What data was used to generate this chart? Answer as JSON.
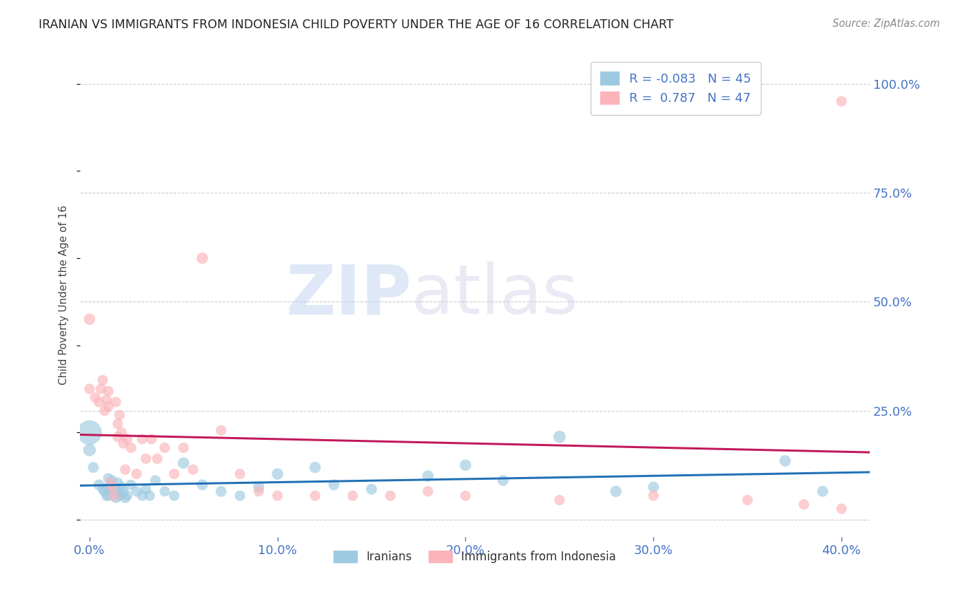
{
  "title": "IRANIAN VS IMMIGRANTS FROM INDONESIA CHILD POVERTY UNDER THE AGE OF 16 CORRELATION CHART",
  "source": "Source: ZipAtlas.com",
  "xlabel_ticks": [
    "0.0%",
    "10.0%",
    "20.0%",
    "30.0%",
    "40.0%"
  ],
  "xlabel_tick_vals": [
    0.0,
    0.1,
    0.2,
    0.3,
    0.4
  ],
  "ylabel": "Child Poverty Under the Age of 16",
  "ylabel_right_ticks": [
    "100.0%",
    "75.0%",
    "50.0%",
    "25.0%"
  ],
  "ylabel_right_tick_vals": [
    1.0,
    0.75,
    0.5,
    0.25
  ],
  "xlim": [
    -0.005,
    0.415
  ],
  "ylim": [
    -0.04,
    1.07
  ],
  "ytick_vals": [
    0.0,
    0.25,
    0.5,
    0.75,
    1.0
  ],
  "legend_iranian_R": "-0.083",
  "legend_iranian_N": "45",
  "legend_indonesia_R": "0.787",
  "legend_indonesia_N": "47",
  "watermark_zip": "ZIP",
  "watermark_atlas": "atlas",
  "scatter_iranian_x": [
    0.0,
    0.0,
    0.002,
    0.005,
    0.007,
    0.008,
    0.009,
    0.01,
    0.01,
    0.01,
    0.012,
    0.013,
    0.014,
    0.015,
    0.015,
    0.016,
    0.017,
    0.018,
    0.019,
    0.02,
    0.022,
    0.025,
    0.028,
    0.03,
    0.032,
    0.035,
    0.04,
    0.045,
    0.05,
    0.06,
    0.07,
    0.08,
    0.09,
    0.1,
    0.12,
    0.13,
    0.15,
    0.18,
    0.2,
    0.22,
    0.25,
    0.28,
    0.3,
    0.37,
    0.39
  ],
  "scatter_iranian_y": [
    0.2,
    0.16,
    0.12,
    0.08,
    0.07,
    0.065,
    0.055,
    0.095,
    0.075,
    0.055,
    0.09,
    0.07,
    0.05,
    0.085,
    0.065,
    0.055,
    0.075,
    0.065,
    0.05,
    0.055,
    0.08,
    0.065,
    0.055,
    0.07,
    0.055,
    0.09,
    0.065,
    0.055,
    0.13,
    0.08,
    0.065,
    0.055,
    0.075,
    0.105,
    0.12,
    0.08,
    0.07,
    0.1,
    0.125,
    0.09,
    0.19,
    0.065,
    0.075,
    0.135,
    0.065
  ],
  "scatter_iranian_size": [
    300,
    80,
    60,
    60,
    55,
    55,
    55,
    55,
    55,
    55,
    55,
    55,
    55,
    55,
    55,
    55,
    55,
    55,
    55,
    55,
    55,
    55,
    55,
    55,
    55,
    55,
    55,
    55,
    65,
    60,
    60,
    55,
    60,
    65,
    65,
    60,
    60,
    65,
    65,
    60,
    75,
    65,
    60,
    65,
    60
  ],
  "scatter_indonesia_x": [
    0.0,
    0.0,
    0.003,
    0.005,
    0.006,
    0.007,
    0.008,
    0.009,
    0.01,
    0.01,
    0.011,
    0.012,
    0.013,
    0.014,
    0.015,
    0.015,
    0.016,
    0.017,
    0.018,
    0.019,
    0.02,
    0.022,
    0.025,
    0.028,
    0.03,
    0.033,
    0.036,
    0.04,
    0.045,
    0.05,
    0.055,
    0.06,
    0.07,
    0.08,
    0.09,
    0.1,
    0.12,
    0.14,
    0.16,
    0.18,
    0.2,
    0.25,
    0.3,
    0.35,
    0.38,
    0.4,
    0.4
  ],
  "scatter_indonesia_y": [
    0.46,
    0.3,
    0.28,
    0.27,
    0.3,
    0.32,
    0.25,
    0.275,
    0.295,
    0.26,
    0.085,
    0.075,
    0.055,
    0.27,
    0.22,
    0.19,
    0.24,
    0.2,
    0.175,
    0.115,
    0.185,
    0.165,
    0.105,
    0.185,
    0.14,
    0.185,
    0.14,
    0.165,
    0.105,
    0.165,
    0.115,
    0.6,
    0.205,
    0.105,
    0.065,
    0.055,
    0.055,
    0.055,
    0.055,
    0.065,
    0.055,
    0.045,
    0.055,
    0.045,
    0.035,
    0.025,
    0.96
  ],
  "scatter_indonesia_size": [
    65,
    55,
    55,
    55,
    55,
    55,
    55,
    55,
    55,
    55,
    55,
    55,
    55,
    55,
    55,
    55,
    55,
    55,
    55,
    55,
    55,
    55,
    55,
    55,
    55,
    55,
    55,
    55,
    55,
    55,
    55,
    65,
    55,
    55,
    55,
    55,
    55,
    55,
    55,
    55,
    55,
    55,
    55,
    55,
    55,
    55,
    55
  ],
  "color_iranian": "#9ecae1",
  "color_indonesia": "#fbb4b9",
  "line_iranian_color": "#2171b5",
  "line_indonesia_color": "#c2185b",
  "background_color": "#ffffff",
  "grid_color": "#cccccc",
  "title_color": "#222222",
  "source_color": "#888888",
  "right_axis_color": "#4472c4",
  "bottom_axis_color": "#4472c4",
  "legend_box_color": "#e8e8e8"
}
